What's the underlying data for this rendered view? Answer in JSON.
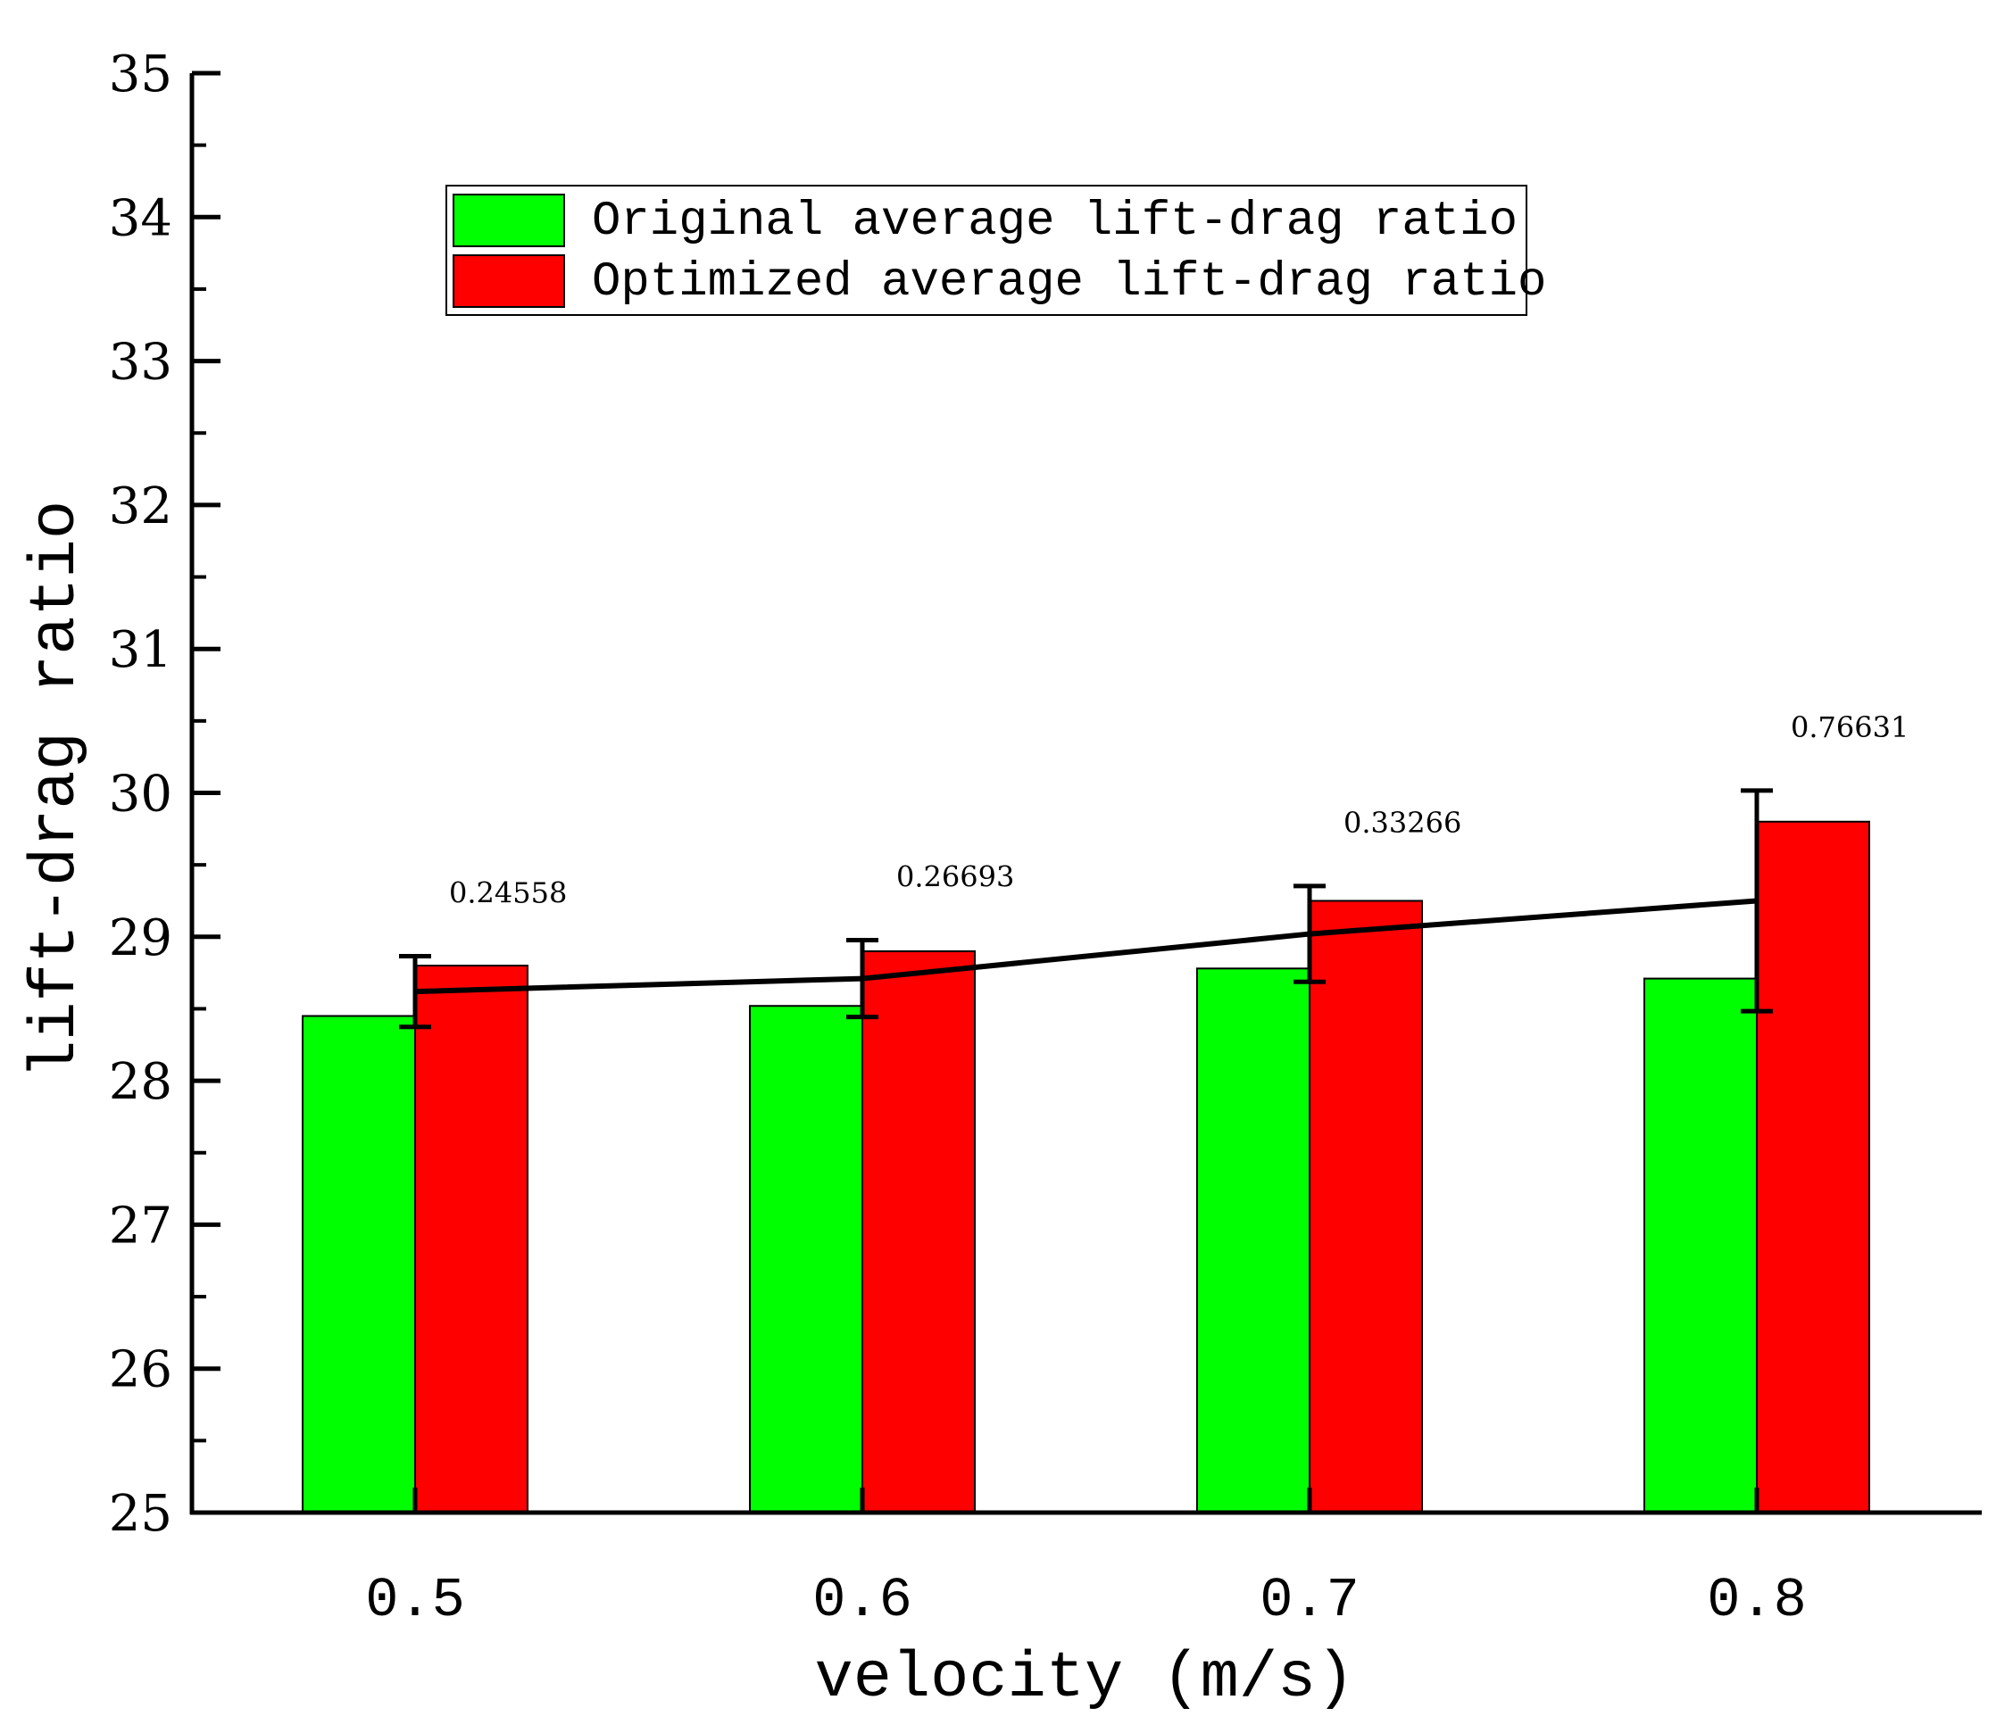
{
  "chart_data": {
    "type": "bar",
    "title": "",
    "xlabel": "velocity (m/s)",
    "ylabel": "lift-drag ratio",
    "categories": [
      "0.5",
      "0.6",
      "0.7",
      "0.8"
    ],
    "ylim": [
      25,
      35
    ],
    "yticks": [
      "25",
      "26",
      "27",
      "28",
      "29",
      "30",
      "31",
      "32",
      "33",
      "34",
      "35"
    ],
    "grid": false,
    "legend_position": "top-center",
    "series": [
      {
        "name": "Original average lift-drag ratio",
        "color": "#00ff00",
        "values": [
          28.45,
          28.52,
          28.78,
          28.71
        ]
      },
      {
        "name": "Optimized average lift-drag ratio",
        "color": "#ff0000",
        "values": [
          28.8,
          28.9,
          29.25,
          29.8
        ]
      }
    ],
    "error_bars": {
      "labels": [
        "0.24558",
        "0.26693",
        "0.33266",
        "0.76631"
      ],
      "centers": [
        28.62,
        28.71,
        29.02,
        29.25
      ],
      "half_widths": [
        0.24558,
        0.26693,
        0.33266,
        0.76631
      ]
    },
    "trend_line": {
      "values": [
        28.62,
        28.71,
        29.02,
        29.25
      ],
      "color": "#000000"
    }
  }
}
